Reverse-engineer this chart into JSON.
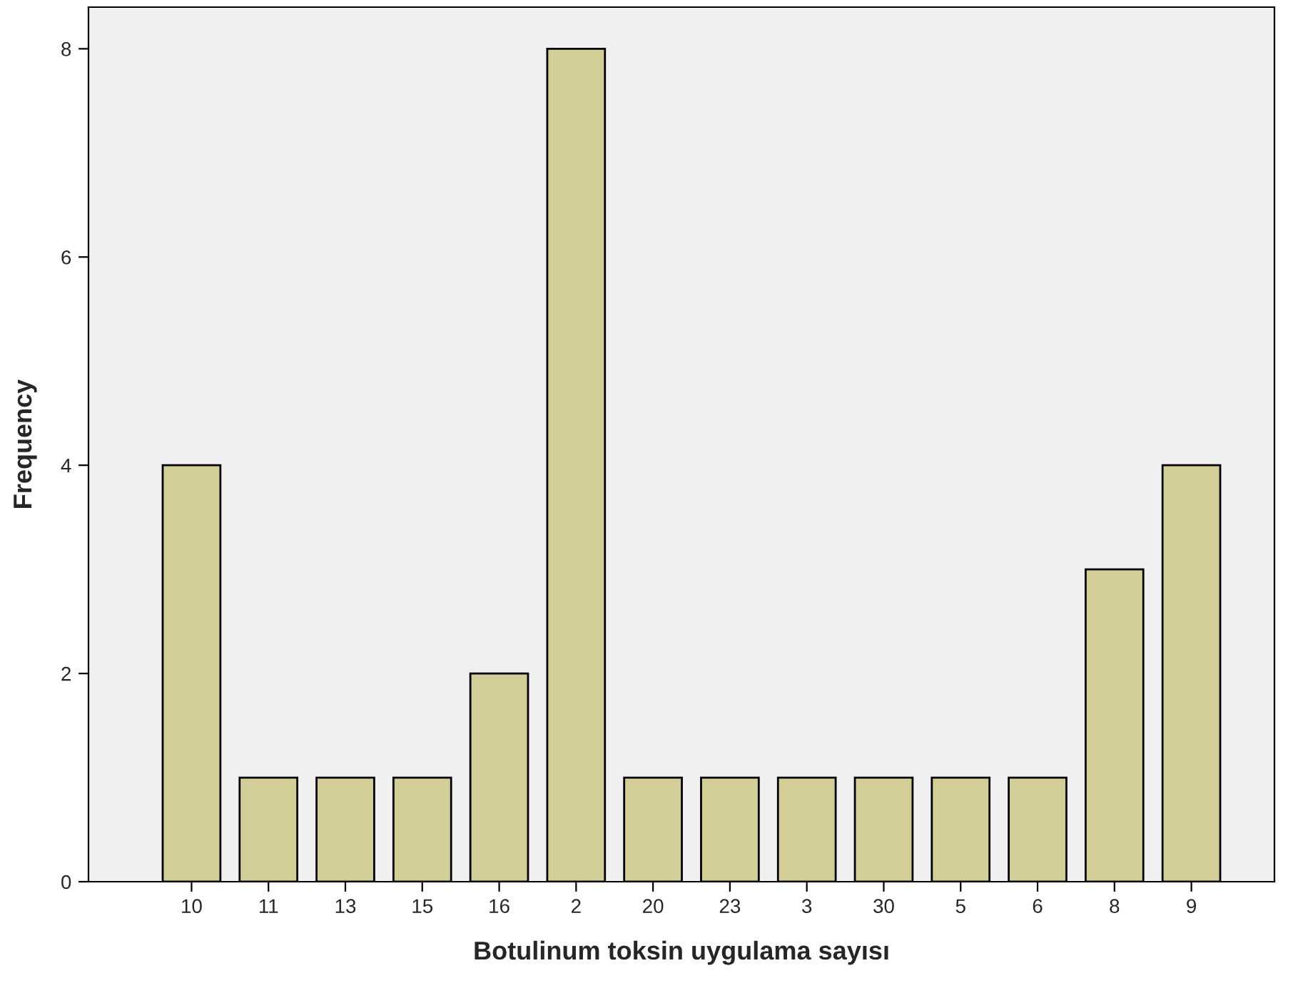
{
  "chart_data": {
    "type": "bar",
    "xlabel": "Botulinum toksin uygulama sayısı",
    "ylabel": "Frequency",
    "categories": [
      "10",
      "11",
      "13",
      "15",
      "16",
      "2",
      "20",
      "23",
      "3",
      "30",
      "5",
      "6",
      "8",
      "9"
    ],
    "values": [
      4,
      1,
      1,
      1,
      2,
      8,
      1,
      1,
      1,
      1,
      1,
      1,
      3,
      4
    ],
    "color": "#d3ce98",
    "ylim": [
      0,
      8.4
    ],
    "yticks": [
      0,
      2,
      4,
      6,
      8
    ],
    "grid": false,
    "legend": false
  }
}
